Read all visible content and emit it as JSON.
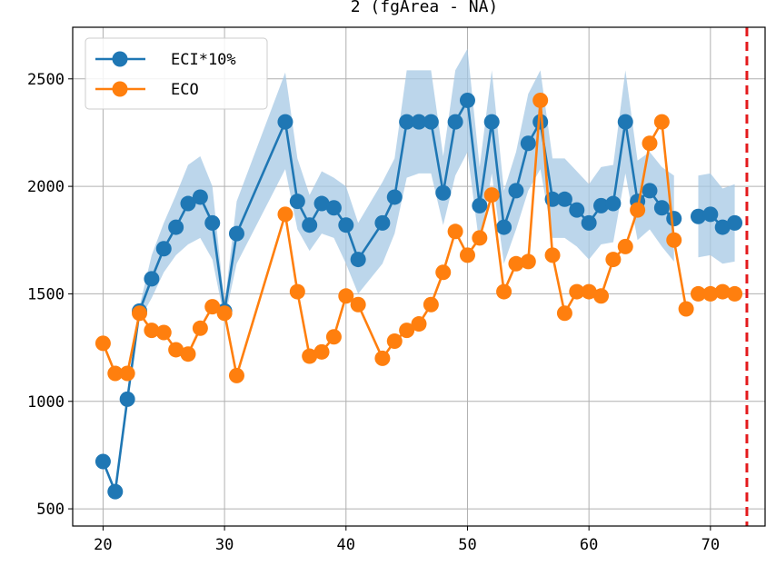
{
  "chart_data": {
    "type": "line",
    "title": "2 (fgArea - NA)",
    "xlim": [
      17.5,
      74.5
    ],
    "ylim": [
      420,
      2740
    ],
    "x_ticks": [
      20,
      30,
      40,
      50,
      60,
      70
    ],
    "y_ticks": [
      500,
      1000,
      1500,
      2000,
      2500
    ],
    "grid": true,
    "legend_position": "top-left",
    "vline": {
      "x": 73,
      "color": "#e41a1c",
      "style": "dashed"
    },
    "series": [
      {
        "name": "ECI*10%",
        "color": "#1f77b4",
        "segments": [
          [
            [
              20,
              720
            ],
            [
              21,
              580
            ],
            [
              22,
              1010
            ],
            [
              23,
              1420
            ],
            [
              24,
              1570
            ],
            [
              25,
              1710
            ],
            [
              26,
              1810
            ],
            [
              27,
              1920
            ],
            [
              28,
              1950
            ],
            [
              29,
              1830
            ],
            [
              30,
              1420
            ],
            [
              31,
              1780
            ],
            [
              35,
              2300
            ],
            [
              36,
              1930
            ],
            [
              37,
              1820
            ],
            [
              38,
              1920
            ],
            [
              39,
              1900
            ],
            [
              40,
              1820
            ],
            [
              41,
              1660
            ],
            [
              43,
              1830
            ],
            [
              44,
              1950
            ],
            [
              45,
              2300
            ],
            [
              46,
              2300
            ],
            [
              47,
              2300
            ],
            [
              48,
              1970
            ],
            [
              49,
              2300
            ],
            [
              50,
              2400
            ],
            [
              51,
              1910
            ],
            [
              52,
              2300
            ],
            [
              53,
              1810
            ],
            [
              54,
              1980
            ],
            [
              55,
              2200
            ],
            [
              56,
              2300
            ],
            [
              57,
              1940
            ],
            [
              58,
              1940
            ],
            [
              59,
              1890
            ],
            [
              60,
              1830
            ],
            [
              61,
              1910
            ],
            [
              62,
              1920
            ],
            [
              63,
              2300
            ],
            [
              64,
              1930
            ],
            [
              65,
              1980
            ],
            [
              66,
              1900
            ],
            [
              67,
              1850
            ]
          ],
          [
            [
              69,
              1860
            ],
            [
              70,
              1870
            ],
            [
              71,
              1810
            ],
            [
              72,
              1830
            ]
          ]
        ],
        "band_color": "#a6c8e4",
        "band": [
          [
            [
              23,
              1380,
              1440
            ],
            [
              24,
              1480,
              1680
            ],
            [
              25,
              1600,
              1830
            ],
            [
              26,
              1680,
              1960
            ],
            [
              27,
              1730,
              2100
            ],
            [
              28,
              1760,
              2140
            ],
            [
              29,
              1660,
              2000
            ],
            [
              30,
              1380,
              1450
            ],
            [
              31,
              1640,
              1930
            ],
            [
              35,
              2080,
              2530
            ],
            [
              36,
              1800,
              2130
            ],
            [
              37,
              1700,
              1960
            ],
            [
              38,
              1780,
              2070
            ],
            [
              39,
              1760,
              2040
            ],
            [
              40,
              1640,
              2000
            ],
            [
              41,
              1500,
              1830
            ],
            [
              43,
              1640,
              2020
            ],
            [
              44,
              1780,
              2130
            ],
            [
              45,
              2040,
              2540
            ],
            [
              46,
              2060,
              2540
            ],
            [
              47,
              2060,
              2540
            ],
            [
              48,
              1820,
              2140
            ],
            [
              49,
              2050,
              2540
            ],
            [
              50,
              2160,
              2640
            ],
            [
              51,
              1720,
              2090
            ],
            [
              52,
              2060,
              2540
            ],
            [
              53,
              1640,
              1980
            ],
            [
              54,
              1800,
              2160
            ],
            [
              55,
              1980,
              2430
            ],
            [
              56,
              2080,
              2540
            ],
            [
              57,
              1760,
              2130
            ],
            [
              58,
              1760,
              2130
            ],
            [
              59,
              1720,
              2070
            ],
            [
              60,
              1660,
              2010
            ],
            [
              61,
              1730,
              2090
            ],
            [
              62,
              1740,
              2100
            ],
            [
              63,
              2060,
              2540
            ],
            [
              64,
              1750,
              2120
            ],
            [
              65,
              1800,
              2160
            ],
            [
              66,
              1720,
              2090
            ],
            [
              67,
              1650,
              2050
            ]
          ],
          [
            [
              69,
              1670,
              2050
            ],
            [
              70,
              1680,
              2060
            ],
            [
              71,
              1640,
              1990
            ],
            [
              72,
              1650,
              2010
            ]
          ]
        ]
      },
      {
        "name": "ECO",
        "color": "#ff7f0e",
        "segments": [
          [
            [
              20,
              1270
            ],
            [
              21,
              1130
            ],
            [
              22,
              1130
            ],
            [
              23,
              1410
            ],
            [
              24,
              1330
            ],
            [
              25,
              1320
            ],
            [
              26,
              1240
            ],
            [
              27,
              1220
            ],
            [
              28,
              1340
            ],
            [
              29,
              1440
            ],
            [
              30,
              1410
            ],
            [
              31,
              1120
            ],
            [
              35,
              1870
            ],
            [
              36,
              1510
            ],
            [
              37,
              1210
            ],
            [
              38,
              1230
            ],
            [
              39,
              1300
            ],
            [
              40,
              1490
            ],
            [
              41,
              1450
            ],
            [
              43,
              1200
            ],
            [
              44,
              1280
            ],
            [
              45,
              1330
            ],
            [
              46,
              1360
            ],
            [
              47,
              1450
            ],
            [
              48,
              1600
            ],
            [
              49,
              1790
            ],
            [
              50,
              1680
            ],
            [
              51,
              1760
            ],
            [
              52,
              1960
            ],
            [
              53,
              1510
            ],
            [
              54,
              1640
            ],
            [
              55,
              1650
            ],
            [
              56,
              2400
            ],
            [
              57,
              1680
            ],
            [
              58,
              1410
            ],
            [
              59,
              1510
            ],
            [
              60,
              1510
            ],
            [
              61,
              1490
            ],
            [
              62,
              1660
            ],
            [
              63,
              1720
            ],
            [
              64,
              1890
            ],
            [
              65,
              2200
            ],
            [
              66,
              2300
            ],
            [
              67,
              1750
            ],
            [
              68,
              1430
            ]
          ],
          [
            [
              69,
              1500
            ],
            [
              70,
              1500
            ],
            [
              71,
              1510
            ],
            [
              72,
              1500
            ]
          ]
        ]
      }
    ]
  }
}
